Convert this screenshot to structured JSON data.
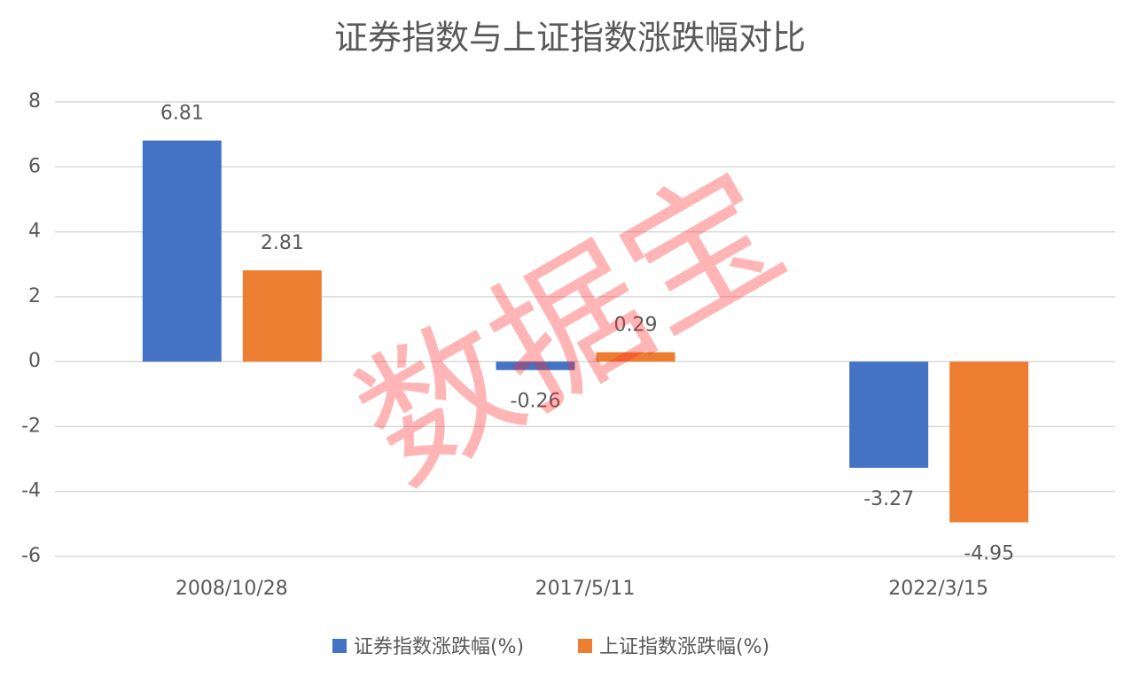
{
  "chart_data": {
    "type": "bar",
    "title": "证券指数与上证指数涨跌幅对比",
    "categories": [
      "2008/10/28",
      "2017/5/11",
      "2022/3/15"
    ],
    "series": [
      {
        "name": "证券指数涨跌幅(%)",
        "color": "#4472c4",
        "values": [
          6.81,
          -0.26,
          -3.27
        ]
      },
      {
        "name": "上证指数涨跌幅(%)",
        "color": "#ed7d31",
        "values": [
          2.81,
          0.29,
          -4.95
        ]
      }
    ],
    "ylim": [
      -6,
      8
    ],
    "yticks": [
      -6,
      -4,
      -2,
      0,
      2,
      4,
      6,
      8
    ],
    "grid": true,
    "legend": "bottom",
    "watermark": "数据宝"
  }
}
